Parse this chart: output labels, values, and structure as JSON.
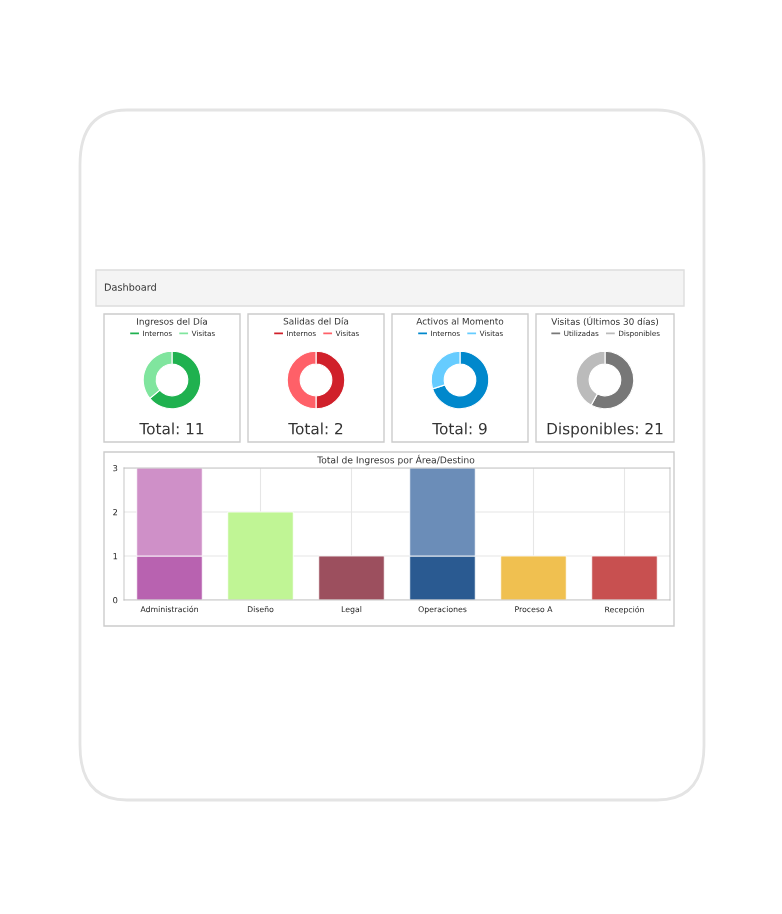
{
  "chart_data": [
    {
      "type": "donut",
      "title": "Ingresos del Día",
      "categories": [
        "Internos",
        "Visitas"
      ],
      "values": [
        64,
        36
      ],
      "colors": [
        "#1fb14f",
        "#80e59e"
      ],
      "legend": "top",
      "annotations": [
        "Dashboard",
        "Total: 11"
      ]
    },
    {
      "type": "donut",
      "title": "Salidas del Día",
      "categories": [
        "Internos",
        "Visitas"
      ],
      "values": [
        50,
        50
      ],
      "colors": [
        "#d0202a",
        "#ff6068"
      ],
      "legend": "top",
      "annotations": [
        "Total: 2"
      ]
    },
    {
      "type": "donut",
      "title": "Activos al Momento",
      "categories": [
        "Internos",
        "Visitas"
      ],
      "values": [
        70,
        30
      ],
      "colors": [
        "#0088cc",
        "#66ccff"
      ],
      "legend": "top",
      "annotations": [
        "Total: 9"
      ]
    },
    {
      "type": "donut",
      "title": "Visitas (Últimos 30 días)",
      "categories": [
        "Utilizadas",
        "Disponibles"
      ],
      "values": [
        58,
        42
      ],
      "colors": [
        "#777777",
        "#bbbbbb"
      ],
      "legend": "top",
      "annotations": [
        "Disponibles: 21"
      ]
    },
    {
      "type": "bar",
      "title": "Total de Ingresos por Área/Destino",
      "categories": [
        "Administración",
        "Diseño",
        "Legal",
        "Operaciones",
        "Proceso A",
        "Recepción"
      ],
      "stacked": true,
      "ylim": [
        0,
        3
      ],
      "yticks": [
        0,
        1,
        2,
        3
      ],
      "grid": true,
      "series": [
        {
          "colors": [
            "#b862b0",
            "#c0f595",
            "#9c4f5e",
            "#2a5a91",
            "#f0c050",
            "#c85050"
          ],
          "values": [
            1,
            2,
            1,
            1,
            1,
            1
          ]
        },
        {
          "colors": [
            "#cf90c8",
            null,
            null,
            "#6b8db8",
            null,
            null
          ],
          "values": [
            2,
            null,
            null,
            2,
            null,
            null
          ]
        }
      ]
    }
  ]
}
